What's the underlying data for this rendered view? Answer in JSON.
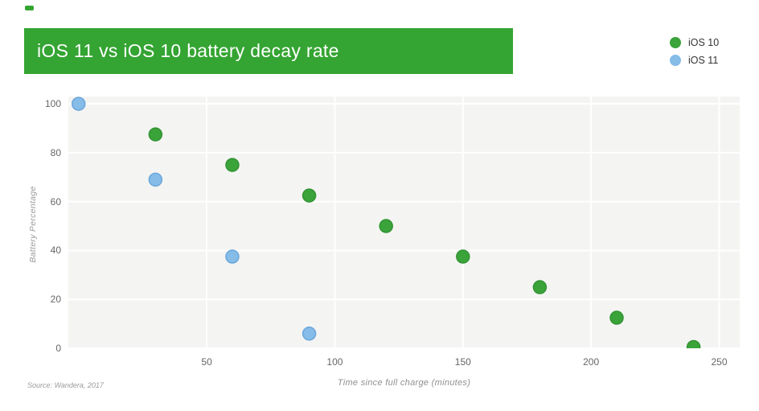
{
  "header": {
    "title": "iOS 11 vs iOS 10 battery decay rate"
  },
  "legend": {
    "items": [
      {
        "label": "iOS 10",
        "color": "#3aa33a"
      },
      {
        "label": "iOS 11",
        "color": "#85bce8"
      }
    ]
  },
  "footer": {
    "source": "Source: Wandera, 2017"
  },
  "colors": {
    "banner": "#34a432",
    "plot_bg": "#f4f4f3",
    "grid": "#ffffff"
  },
  "chart_data": {
    "type": "scatter",
    "title": "iOS 11 vs iOS 10 battery decay rate",
    "xlabel": "Time since full charge (minutes)",
    "ylabel": "Battery Percentage",
    "xlim": [
      -4,
      258
    ],
    "ylim": [
      0,
      103
    ],
    "xticks": [
      50,
      100,
      150,
      200,
      250
    ],
    "yticks": [
      0,
      20,
      40,
      60,
      80,
      100
    ],
    "grid": true,
    "legend_position": "top-right",
    "series": [
      {
        "name": "iOS 10",
        "color": "#3aa33a",
        "stroke": "#339333",
        "points": [
          [
            30,
            87.5
          ],
          [
            60,
            75
          ],
          [
            90,
            62.5
          ],
          [
            120,
            50
          ],
          [
            150,
            37.5
          ],
          [
            180,
            25
          ],
          [
            210,
            12.5
          ],
          [
            240,
            0.5
          ]
        ]
      },
      {
        "name": "iOS 11",
        "color": "#85bce8",
        "stroke": "#6aa6da",
        "points": [
          [
            0,
            100
          ],
          [
            30,
            69
          ],
          [
            60,
            37.5
          ],
          [
            90,
            6
          ]
        ]
      }
    ]
  }
}
